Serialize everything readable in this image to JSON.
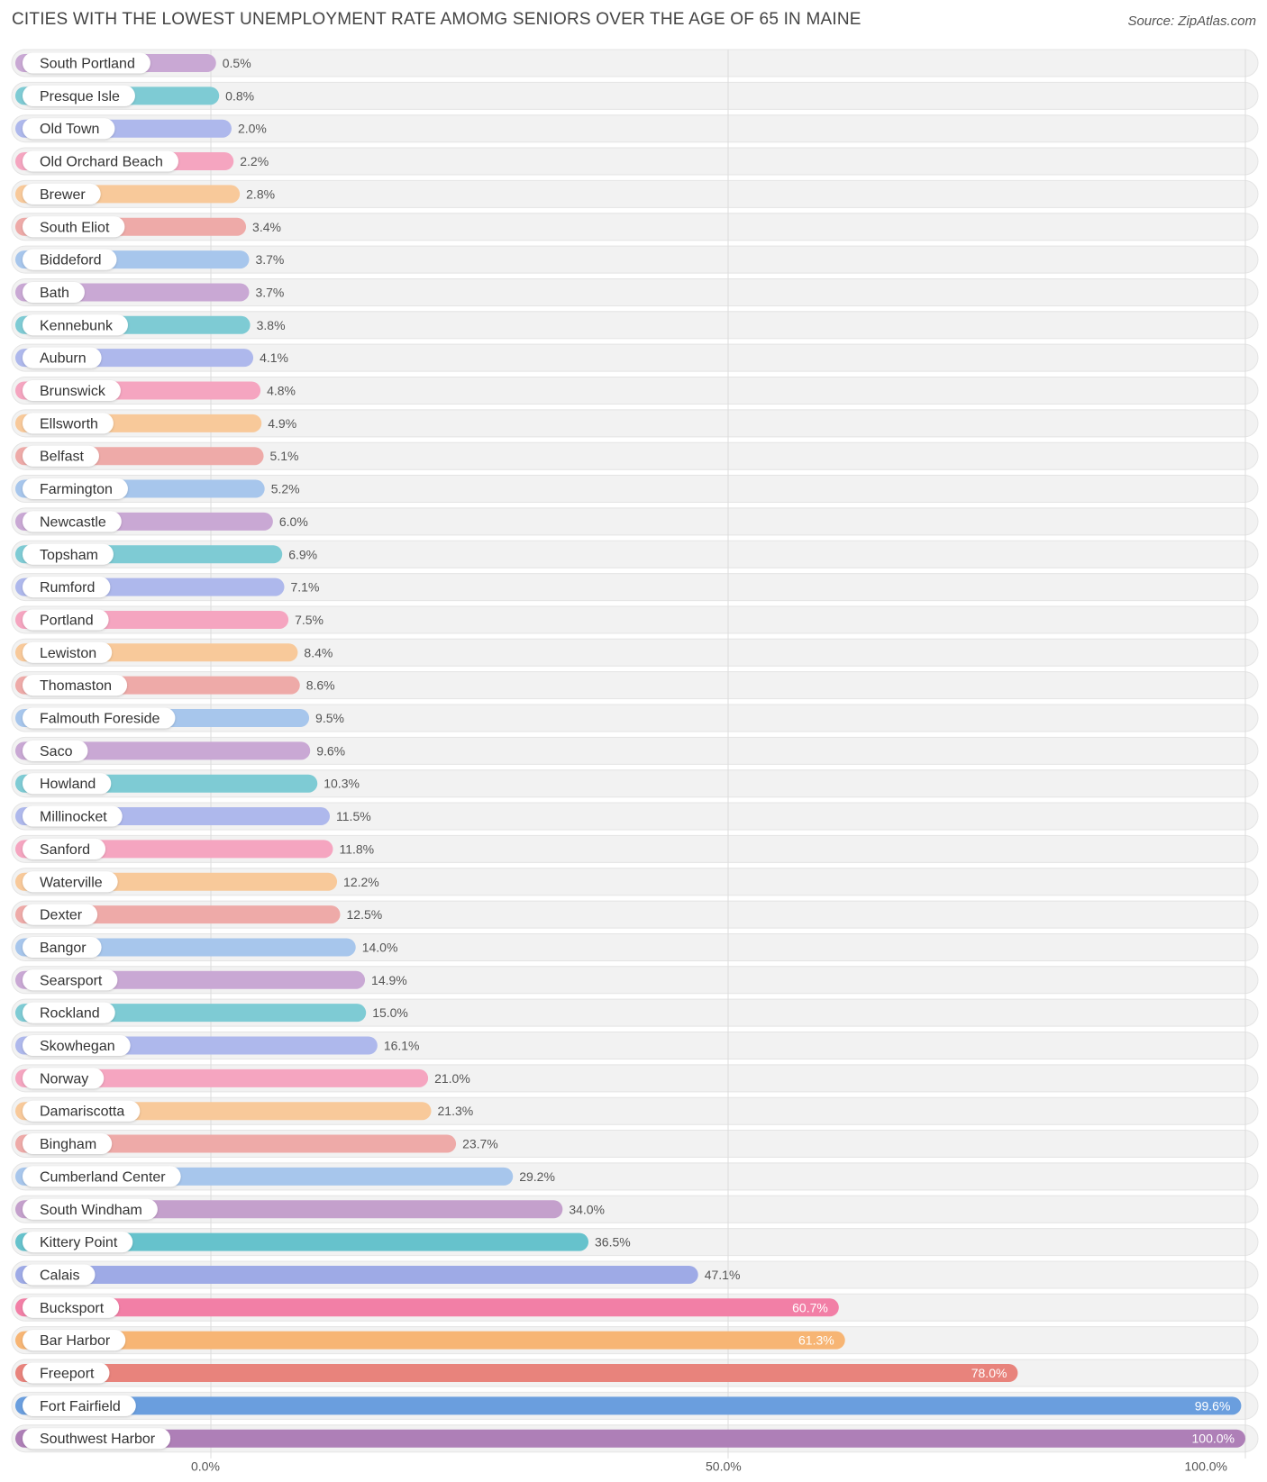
{
  "header": {
    "title": "CITIES WITH THE LOWEST UNEMPLOYMENT RATE AMOMG SENIORS OVER THE AGE OF 65 IN MAINE",
    "source": "Source: ZipAtlas.com"
  },
  "chart_data": {
    "type": "bar",
    "orientation": "horizontal",
    "title": "CITIES WITH THE LOWEST UNEMPLOYMENT RATE AMOMG SENIORS OVER THE AGE OF 65 IN MAINE",
    "xlim": [
      0,
      100
    ],
    "ticks": [
      {
        "value": 0,
        "label": "0.0%"
      },
      {
        "value": 50,
        "label": "50.0%"
      },
      {
        "value": 100,
        "label": "100.0%"
      }
    ],
    "value_suffix": "%",
    "bars": [
      {
        "label": "South Portland",
        "value": 0.5,
        "display": "0.5%",
        "color": "#c9a8d4"
      },
      {
        "label": "Presque Isle",
        "value": 0.8,
        "display": "0.8%",
        "color": "#7ecbd4"
      },
      {
        "label": "Old Town",
        "value": 2.0,
        "display": "2.0%",
        "color": "#aeb8ec"
      },
      {
        "label": "Old Orchard Beach",
        "value": 2.2,
        "display": "2.2%",
        "color": "#f5a5c0"
      },
      {
        "label": "Brewer",
        "value": 2.8,
        "display": "2.8%",
        "color": "#f8c99a"
      },
      {
        "label": "South Eliot",
        "value": 3.4,
        "display": "3.4%",
        "color": "#eeaaa8"
      },
      {
        "label": "Biddeford",
        "value": 3.7,
        "display": "3.7%",
        "color": "#a7c6ec"
      },
      {
        "label": "Bath",
        "value": 3.7,
        "display": "3.7%",
        "color": "#c9a8d4"
      },
      {
        "label": "Kennebunk",
        "value": 3.8,
        "display": "3.8%",
        "color": "#7ecbd4"
      },
      {
        "label": "Auburn",
        "value": 4.1,
        "display": "4.1%",
        "color": "#aeb8ec"
      },
      {
        "label": "Brunswick",
        "value": 4.8,
        "display": "4.8%",
        "color": "#f5a5c0"
      },
      {
        "label": "Ellsworth",
        "value": 4.9,
        "display": "4.9%",
        "color": "#f8c99a"
      },
      {
        "label": "Belfast",
        "value": 5.1,
        "display": "5.1%",
        "color": "#eeaaa8"
      },
      {
        "label": "Farmington",
        "value": 5.2,
        "display": "5.2%",
        "color": "#a7c6ec"
      },
      {
        "label": "Newcastle",
        "value": 6.0,
        "display": "6.0%",
        "color": "#c9a8d4"
      },
      {
        "label": "Topsham",
        "value": 6.9,
        "display": "6.9%",
        "color": "#7ecbd4"
      },
      {
        "label": "Rumford",
        "value": 7.1,
        "display": "7.1%",
        "color": "#aeb8ec"
      },
      {
        "label": "Portland",
        "value": 7.5,
        "display": "7.5%",
        "color": "#f5a5c0"
      },
      {
        "label": "Lewiston",
        "value": 8.4,
        "display": "8.4%",
        "color": "#f8c99a"
      },
      {
        "label": "Thomaston",
        "value": 8.6,
        "display": "8.6%",
        "color": "#eeaaa8"
      },
      {
        "label": "Falmouth Foreside",
        "value": 9.5,
        "display": "9.5%",
        "color": "#a7c6ec"
      },
      {
        "label": "Saco",
        "value": 9.6,
        "display": "9.6%",
        "color": "#c9a8d4"
      },
      {
        "label": "Howland",
        "value": 10.3,
        "display": "10.3%",
        "color": "#7ecbd4"
      },
      {
        "label": "Millinocket",
        "value": 11.5,
        "display": "11.5%",
        "color": "#aeb8ec"
      },
      {
        "label": "Sanford",
        "value": 11.8,
        "display": "11.8%",
        "color": "#f5a5c0"
      },
      {
        "label": "Waterville",
        "value": 12.2,
        "display": "12.2%",
        "color": "#f8c99a"
      },
      {
        "label": "Dexter",
        "value": 12.5,
        "display": "12.5%",
        "color": "#eeaaa8"
      },
      {
        "label": "Bangor",
        "value": 14.0,
        "display": "14.0%",
        "color": "#a7c6ec"
      },
      {
        "label": "Searsport",
        "value": 14.9,
        "display": "14.9%",
        "color": "#c9a8d4"
      },
      {
        "label": "Rockland",
        "value": 15.0,
        "display": "15.0%",
        "color": "#7ecbd4"
      },
      {
        "label": "Skowhegan",
        "value": 16.1,
        "display": "16.1%",
        "color": "#aeb8ec"
      },
      {
        "label": "Norway",
        "value": 21.0,
        "display": "21.0%",
        "color": "#f5a5c0"
      },
      {
        "label": "Damariscotta",
        "value": 21.3,
        "display": "21.3%",
        "color": "#f8c99a"
      },
      {
        "label": "Bingham",
        "value": 23.7,
        "display": "23.7%",
        "color": "#eeaaa8"
      },
      {
        "label": "Cumberland Center",
        "value": 29.2,
        "display": "29.2%",
        "color": "#a7c6ec"
      },
      {
        "label": "South Windham",
        "value": 34.0,
        "display": "34.0%",
        "color": "#c4a0cc"
      },
      {
        "label": "Kittery Point",
        "value": 36.5,
        "display": "36.5%",
        "color": "#66c2cc"
      },
      {
        "label": "Calais",
        "value": 47.1,
        "display": "47.1%",
        "color": "#9eaae6"
      },
      {
        "label": "Bucksport",
        "value": 60.7,
        "display": "60.7%",
        "color": "#f27fa6"
      },
      {
        "label": "Bar Harbor",
        "value": 61.3,
        "display": "61.3%",
        "color": "#f7b574"
      },
      {
        "label": "Freeport",
        "value": 78.0,
        "display": "78.0%",
        "color": "#e8837c"
      },
      {
        "label": "Fort Fairfield",
        "value": 99.6,
        "display": "99.6%",
        "color": "#6a9ede"
      },
      {
        "label": "Southwest Harbor",
        "value": 100.0,
        "display": "100.0%",
        "color": "#ae7fb7"
      }
    ]
  }
}
